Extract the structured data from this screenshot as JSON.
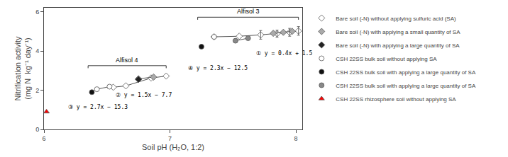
{
  "chart_data": {
    "type": "scatter",
    "xlabel": "Soil pH (H₂O, 1:2)",
    "ylabel": "Nitrification activity\n(mg N  kg⁻¹ day⁻¹)",
    "xlim": [
      6.0,
      8.05
    ],
    "ylim": [
      0,
      6.2
    ],
    "xticks": [
      6,
      7,
      8
    ],
    "yticks": [
      0,
      2,
      4,
      6
    ],
    "grid": false,
    "legend": "right",
    "series": [
      {
        "name": "Bare soil (-N) without applying sulfuric acid (SA)",
        "marker": "diamond",
        "color": "white",
        "line_style": "solid",
        "x": [
          6.55,
          6.65,
          6.85,
          6.97
        ],
        "y": [
          2.15,
          2.22,
          2.62,
          2.72
        ]
      },
      {
        "name": "Bare soil (-N) without applying sulfuric acid (SA)",
        "marker": "diamond",
        "color": "white",
        "line_style": "solid",
        "x": [
          7.35,
          7.55,
          7.72,
          7.85,
          7.95,
          8.02
        ],
        "y": [
          4.72,
          4.75,
          4.82,
          4.88,
          4.95,
          5.02
        ]
      },
      {
        "name": "Bare soil (-N) with applying a small quantity of SA",
        "marker": "diamond",
        "color": "#aaaaaa",
        "line_style": "solid",
        "x": [
          6.75,
          6.87
        ],
        "y": [
          2.58,
          2.67
        ]
      },
      {
        "name": "Bare soil (-N) with applying a small quantity of SA",
        "marker": "diamond",
        "color": "#aaaaaa",
        "line_style": "solid",
        "x": [
          7.82,
          7.9,
          7.97
        ],
        "y": [
          4.9,
          4.95,
          5.0
        ]
      },
      {
        "name": "Bare soil (-N) with applying a large quantity of SA",
        "marker": "diamond",
        "color": "#222222",
        "line_style": "none",
        "x": [
          6.75
        ],
        "y": [
          2.55
        ]
      },
      {
        "name": "CSH 22SS bulk soil without applying SA",
        "marker": "circle",
        "color": "white",
        "line_style": "solid",
        "x": [
          6.42,
          6.52
        ],
        "y": [
          2.05,
          2.18
        ]
      },
      {
        "name": "CSH 22SS bulk soil without applying SA",
        "marker": "circle",
        "color": "white",
        "line_style": "none",
        "x": [
          7.35
        ],
        "y": [
          4.72
        ]
      },
      {
        "name": "CSH 22SS bulk soil with applying a large quantity of SA",
        "marker": "circle",
        "color": "#111111",
        "line_style": "none",
        "x": [
          6.38
        ],
        "y": [
          1.9
        ]
      },
      {
        "name": "CSH 22SS bulk soil with applying a large quantity of SA",
        "marker": "circle",
        "color": "#111111",
        "line_style": "none",
        "x": [
          7.25
        ],
        "y": [
          4.22
        ]
      },
      {
        "name": "CSH 22SS bulk soil with applying a large quantity of SA",
        "marker": "circle",
        "color": "#888888",
        "line_style": "solid",
        "x": [
          7.52,
          7.62
        ],
        "y": [
          4.52,
          4.65
        ]
      },
      {
        "name": "CSH 22SS rhizosphere soil without applying SA",
        "marker": "triangle-up",
        "color": "red",
        "line_style": "none",
        "x": [
          6.02
        ],
        "y": [
          0.9
        ]
      }
    ],
    "error_bars": [
      {
        "x": 7.72,
        "y": 4.82,
        "yerr": 0.22
      },
      {
        "x": 7.85,
        "y": 4.88,
        "yerr": 0.18
      },
      {
        "x": 7.95,
        "y": 4.95,
        "yerr": 0.2
      },
      {
        "x": 8.02,
        "y": 5.02,
        "yerr": 0.22
      }
    ],
    "annotations": [
      {
        "text": "① y = 0.4x + 1.5",
        "x": 7.67,
        "y": 4.12
      },
      {
        "text": "④ y = 2.3x − 12.5",
        "x": 7.13,
        "y": 3.35
      },
      {
        "text": "② y = 1.5x − 7.7",
        "x": 6.56,
        "y": 2.0
      },
      {
        "text": "③ y = 2.7x − 15.3",
        "x": 6.18,
        "y": 1.38
      }
    ],
    "brackets": [
      {
        "text": "Alfisol 4",
        "x": [
          6.35,
          6.97
        ],
        "y": 3.25
      },
      {
        "text": "Alfisol 3",
        "x": [
          7.22,
          8.02
        ],
        "y": 5.72
      }
    ]
  }
}
